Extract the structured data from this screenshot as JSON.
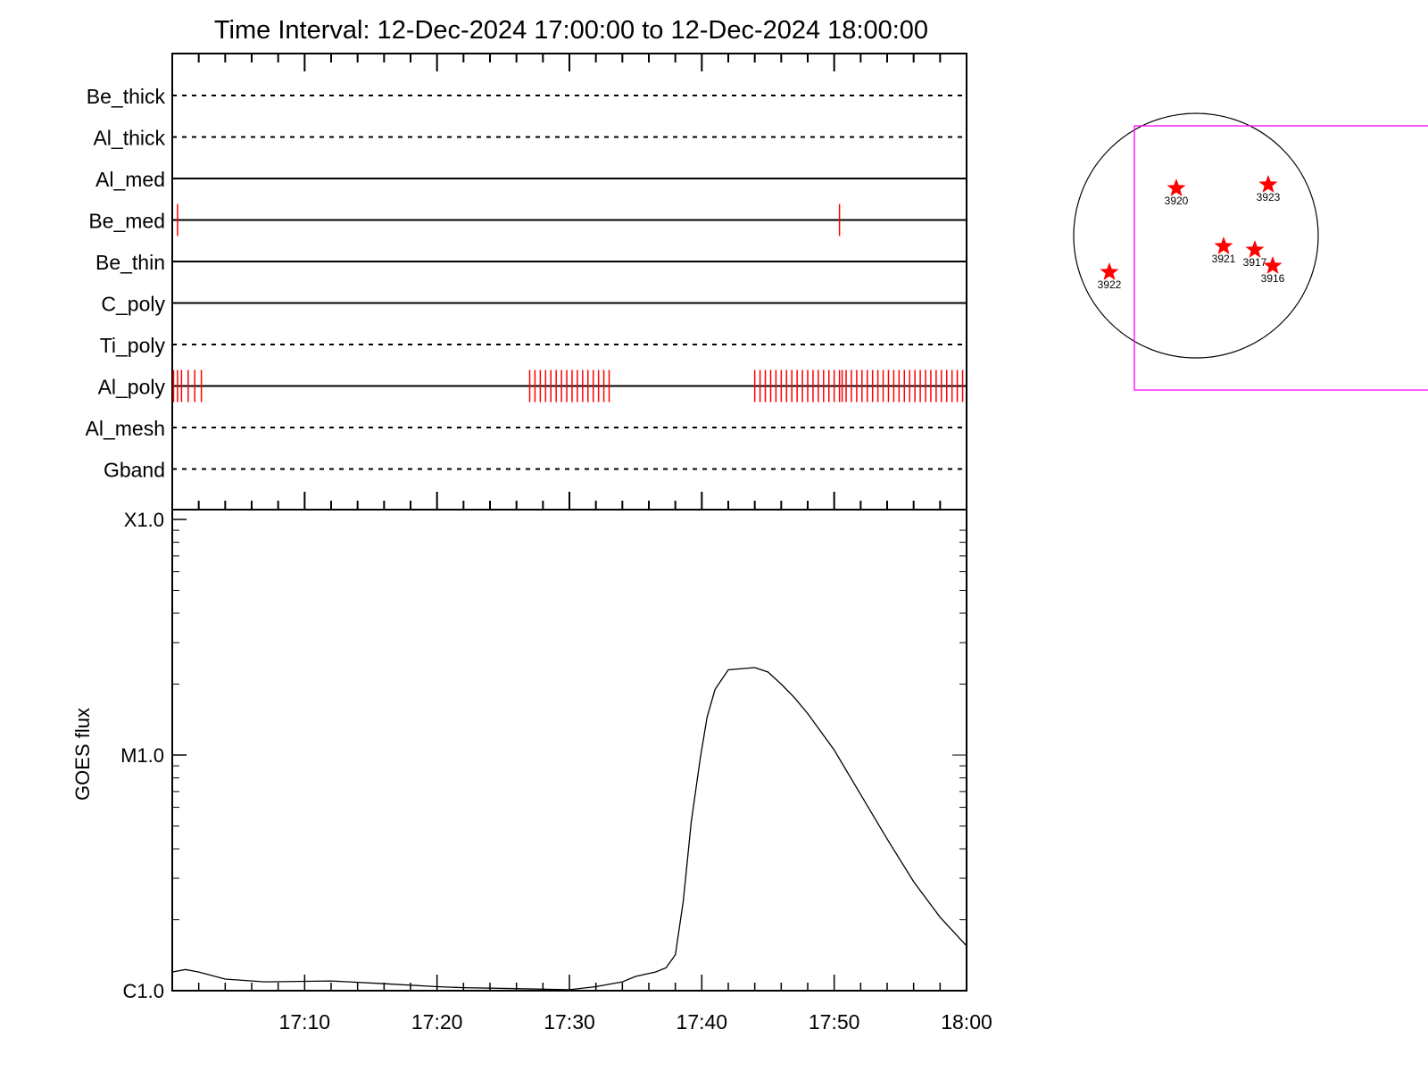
{
  "chart_data": [
    {
      "type": "timeline",
      "title": "Time Interval: 12-Dec-2024 17:00:00 to 12-Dec-2024 18:00:00",
      "x_range_minutes": [
        0,
        60
      ],
      "rows": [
        {
          "label": "Be_thick",
          "line": "dashed",
          "marks": []
        },
        {
          "label": "Al_thick",
          "line": "dashed",
          "marks": []
        },
        {
          "label": "Al_med",
          "line": "solid",
          "marks": []
        },
        {
          "label": "Be_med",
          "line": "solid",
          "marks": [
            0.4,
            50.4
          ]
        },
        {
          "label": "Be_thin",
          "line": "solid",
          "marks": []
        },
        {
          "label": "C_poly",
          "line": "solid",
          "marks": []
        },
        {
          "label": "Ti_poly",
          "line": "dashed",
          "marks": []
        },
        {
          "label": "Al_poly",
          "line": "solid",
          "marks": [
            0.1,
            0.4,
            0.7,
            1.2,
            1.7,
            2.2,
            27.0,
            27.4,
            27.8,
            28.2,
            28.6,
            29.0,
            29.4,
            29.8,
            30.2,
            30.6,
            31.0,
            31.4,
            31.8,
            32.2,
            32.6,
            33.0,
            44.0,
            44.4,
            44.8,
            45.2,
            45.6,
            46.0,
            46.4,
            46.8,
            47.2,
            47.6,
            48.0,
            48.4,
            48.8,
            49.2,
            49.6,
            50.0,
            50.4,
            50.6,
            50.9,
            51.3,
            51.7,
            52.1,
            52.5,
            52.9,
            53.3,
            53.7,
            54.1,
            54.5,
            54.9,
            55.3,
            55.7,
            56.1,
            56.5,
            56.9,
            57.3,
            57.7,
            58.1,
            58.5,
            58.9,
            59.3,
            59.7
          ]
        },
        {
          "label": "Al_mesh",
          "line": "dashed",
          "marks": []
        },
        {
          "label": "Gband",
          "line": "dashed",
          "marks": []
        }
      ],
      "mark_color": "#ff0000"
    },
    {
      "type": "line",
      "ylabel": "GOES flux",
      "yscale": "log",
      "ylim": [
        1e-06,
        0.0001
      ],
      "y_tick_labels": [
        {
          "label": "C1.0",
          "value": 1e-06
        },
        {
          "label": "M1.0",
          "value": 1e-05
        },
        {
          "label": "X1.0",
          "value": 0.0001
        }
      ],
      "x_tick_labels": [
        "17:10",
        "17:20",
        "17:30",
        "17:40",
        "17:50",
        "18:00"
      ],
      "x_tick_minutes": [
        10,
        20,
        30,
        40,
        50,
        60
      ],
      "series": [
        {
          "x": [
            0,
            1,
            2,
            4,
            7,
            12,
            16,
            20,
            22,
            26,
            30,
            32,
            34,
            35,
            36.5,
            37.3,
            38.0,
            38.6,
            39.2,
            39.9,
            40.4,
            41.0,
            42.0,
            44.0,
            45.0,
            46.0,
            47.0,
            48.0,
            50.0,
            52.0,
            54.0,
            56.0,
            58.0,
            60.0
          ],
          "y": [
            1.2e-06,
            1.23e-06,
            1.2e-06,
            1.12e-06,
            1.09e-06,
            1.1e-06,
            1.07e-06,
            1.04e-06,
            1.03e-06,
            1.02e-06,
            1.01e-06,
            1.04e-06,
            1.09e-06,
            1.15e-06,
            1.2e-06,
            1.25e-06,
            1.42e-06,
            2.4e-06,
            5.2e-06,
            9.8e-06,
            1.45e-05,
            1.9e-05,
            2.3e-05,
            2.35e-05,
            2.25e-05,
            2e-05,
            1.75e-05,
            1.5e-05,
            1.05e-05,
            6.8e-06,
            4.4e-06,
            2.9e-06,
            2.05e-06,
            1.55e-06
          ],
          "color": "#000000"
        }
      ]
    }
  ],
  "disk_map": {
    "circle_color": "#000000",
    "fov_color": "#ff00ff",
    "marker_color": "#ff0000",
    "regions": [
      {
        "label": "3920"
      },
      {
        "label": "3923"
      },
      {
        "label": "3921"
      },
      {
        "label": "3917"
      },
      {
        "label": "3916"
      },
      {
        "label": "3922"
      }
    ]
  }
}
